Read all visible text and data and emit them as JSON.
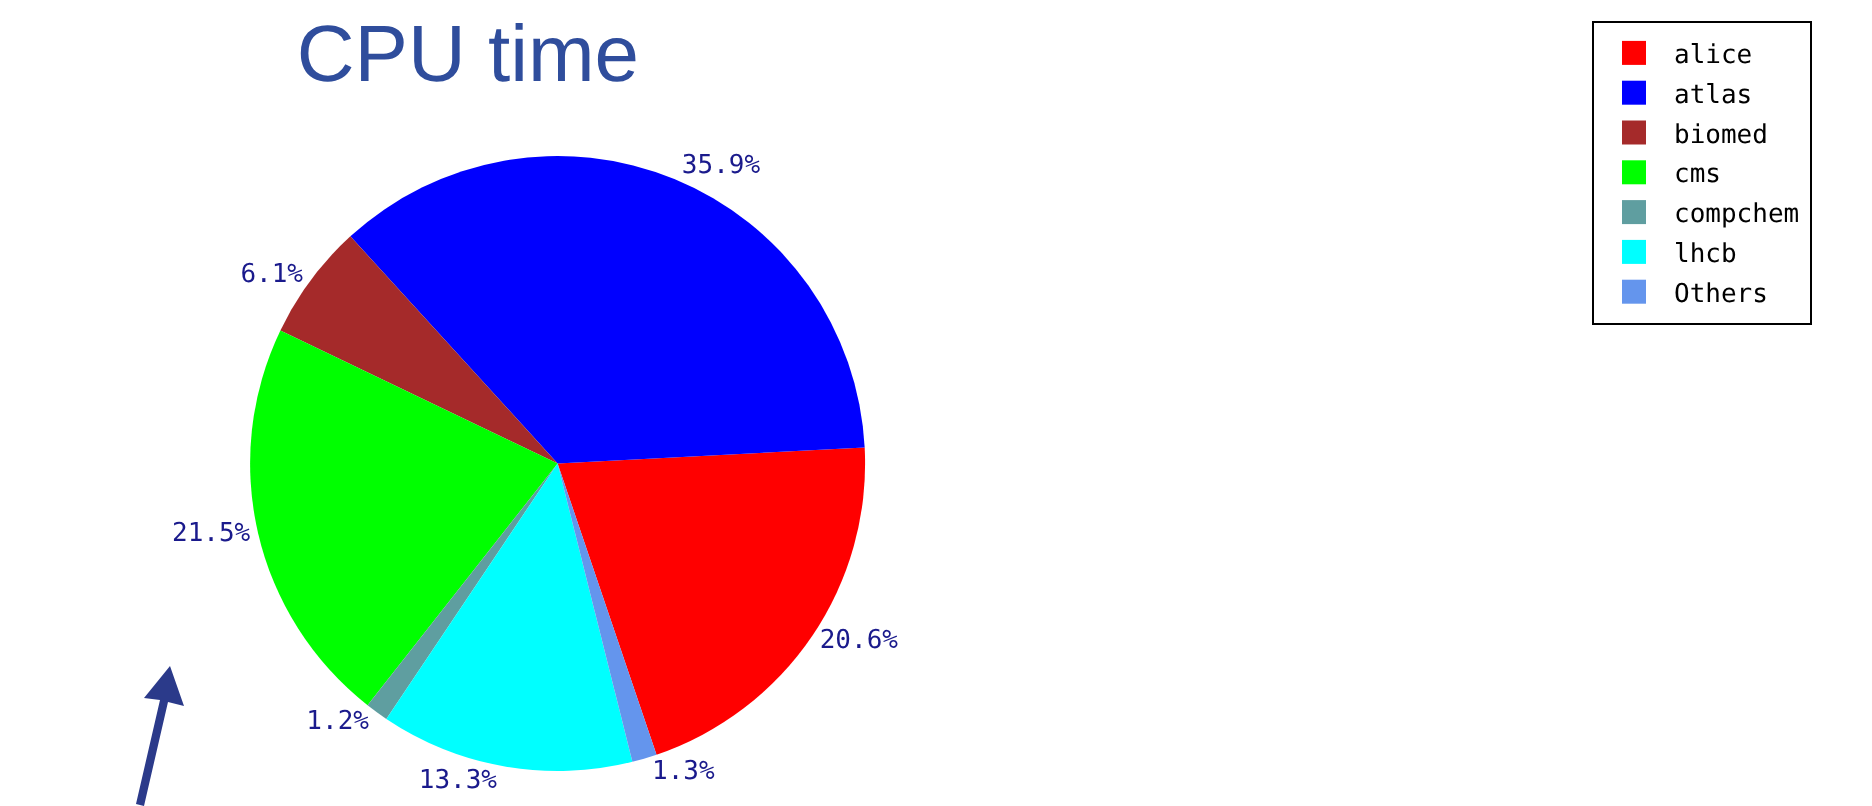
{
  "chart_data": {
    "type": "pie",
    "title": "CPU time",
    "categories": [
      "alice",
      "atlas",
      "biomed",
      "cms",
      "compchem",
      "lhcb",
      "Others"
    ],
    "values": [
      20.6,
      35.9,
      6.1,
      21.5,
      1.2,
      13.3,
      1.3
    ],
    "value_labels": [
      "20.6%",
      "35.9%",
      "6.1%",
      "21.5%",
      "1.2%",
      "13.3%",
      "1.3%"
    ],
    "colors": [
      "#ff0000",
      "#0000ff",
      "#a52a2a",
      "#00ff00",
      "#5f9ea0",
      "#00ffff",
      "#6495ed"
    ],
    "legend": "top right"
  }
}
